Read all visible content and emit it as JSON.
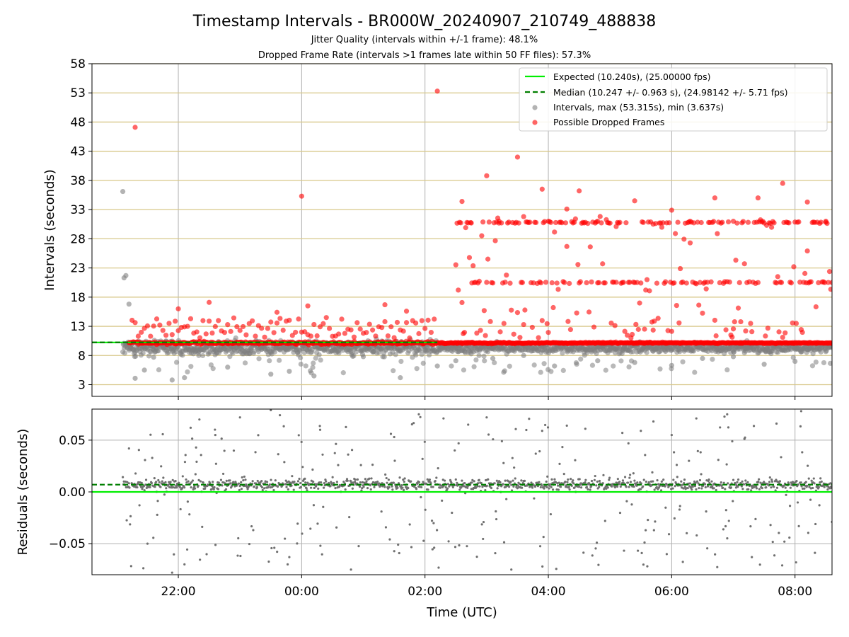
{
  "title": "Timestamp Intervals - BR000W_20240907_210749_488838",
  "subtitle1": "Jitter Quality (intervals within +/-1 frame): 48.1%",
  "subtitle2": "Dropped Frame Rate (intervals >1 frames late within 50 FF files): 57.3%",
  "colors": {
    "expected": "#00ee00",
    "median": "#007f00",
    "intervals": "#808080",
    "dropped": "#ff0000",
    "hgrid": "#d8c88a",
    "vgrid": "#b0b0b0"
  },
  "chart_data": [
    {
      "type": "scatter",
      "ylabel": "Intervals (seconds)",
      "xlabel": "",
      "x_ticks": [
        "22:00",
        "00:00",
        "02:00",
        "04:00",
        "06:00",
        "08:00"
      ],
      "y_ticks": [
        "3",
        "8",
        "13",
        "18",
        "23",
        "28",
        "33",
        "38",
        "43",
        "48",
        "53",
        "58"
      ],
      "x_range_hours": [
        20.6,
        32.6
      ],
      "ylim": [
        1,
        58
      ],
      "expected_interval": 10.24,
      "median_interval": 10.247,
      "legend_position": "upper right",
      "legend": [
        "Expected (10.240s), (25.00000 fps)",
        "Median (10.247 +/- 0.963 s), (24.98142 +/- 5.71 fps)",
        "Intervals, max (53.315s), min (3.637s)",
        "Possible Dropped Frames"
      ],
      "series": [
        {
          "name": "Intervals, max (53.315s), min (3.637s)",
          "x_hours": [
            21.1,
            21.12,
            21.15,
            21.3,
            21.45,
            21.6,
            21.9,
            22.1,
            22.8,
            23.5,
            23.8,
            24.2,
            25.0,
            25.6,
            26.2,
            26.5,
            27.1,
            27.6,
            28.1,
            28.8,
            29.4,
            30.0,
            30.5,
            31.0,
            31.5,
            32.0,
            21.2,
            21.8,
            22.4,
            23.0,
            24.6,
            25.3,
            26.8,
            27.9,
            29.0,
            29.9,
            31.2,
            32.2
          ],
          "y": [
            36.1,
            21.3,
            21.7,
            4.1,
            5.5,
            7.7,
            3.8,
            4.2,
            6.0,
            4.8,
            5.3,
            4.5,
            7.8,
            4.2,
            6.2,
            7.1,
            7.5,
            8.0,
            6.2,
            7.1,
            6.8,
            6.3,
            7.5,
            7.8,
            6.5,
            7.0,
            16.8,
            10.5,
            9.0,
            9.5,
            8.8,
            9.2,
            9.4,
            8.9,
            9.1,
            8.7,
            9.3,
            9.0
          ]
        },
        {
          "name": "Possible Dropped Frames",
          "x_hours": [
            21.3,
            22.0,
            22.5,
            23.6,
            24.0,
            24.1,
            25.35,
            25.7,
            26.2,
            26.6,
            26.75,
            27.0,
            27.2,
            27.5,
            27.6,
            27.9,
            28.0,
            28.3,
            28.5,
            28.8,
            29.1,
            29.4,
            29.7,
            30.0,
            30.3,
            30.7,
            31.0,
            31.4,
            31.8,
            32.2,
            32.5
          ],
          "y": [
            47.1,
            16.0,
            17.1,
            15.4,
            35.3,
            16.5,
            16.7,
            15.6,
            53.3,
            34.4,
            30.7,
            38.8,
            31.0,
            42.0,
            31.8,
            36.5,
            31.0,
            33.1,
            36.2,
            31.0,
            30.1,
            34.5,
            30.5,
            32.9,
            31.0,
            35.0,
            31.0,
            35.0,
            37.5,
            34.3,
            31.0
          ]
        }
      ]
    },
    {
      "type": "scatter",
      "ylabel": "Residuals (seconds)",
      "xlabel": "Time (UTC)",
      "x_ticks": [
        "22:00",
        "00:00",
        "02:00",
        "04:00",
        "06:00",
        "08:00"
      ],
      "y_ticks": [
        "0.05",
        "0.00",
        "−0.05"
      ],
      "ylim": [
        -0.08,
        0.08
      ],
      "expected_residual": 0.0,
      "median_residual": 0.007,
      "series": [
        {
          "name": "Residuals",
          "x_hours": [
            21.2,
            21.5,
            21.9,
            22.1,
            22.2,
            22.6,
            23.0,
            23.5,
            23.8,
            24.3,
            24.8,
            25.5,
            25.9,
            26.3,
            26.7,
            27.0,
            27.4,
            27.9,
            28.3,
            28.6,
            29.2,
            29.5,
            30.0,
            30.4,
            30.9,
            31.3,
            31.7,
            32.1,
            32.6
          ],
          "y": [
            0.042,
            -0.05,
            -0.078,
            -0.07,
            0.062,
            0.055,
            0.072,
            0.079,
            -0.063,
            0.06,
            -0.075,
            0.053,
            0.075,
            0.071,
            0.065,
            0.072,
            -0.075,
            0.059,
            0.064,
            0.061,
            0.057,
            0.059,
            0.055,
            0.071,
            0.075,
            -0.063,
            0.066,
            0.078,
            -0.029
          ]
        }
      ]
    }
  ]
}
